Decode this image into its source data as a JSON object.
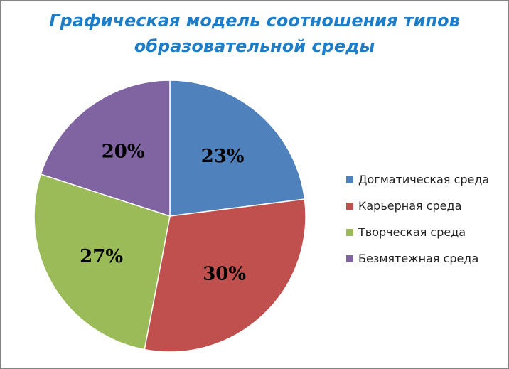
{
  "chart_data": {
    "type": "pie",
    "title_lines": [
      "Графическая модель соотношения типов",
      "образовательной среды"
    ],
    "categories": [
      "Догматическая среда",
      "Карьерная среда",
      "Творческая среда",
      "Безмятежная среда"
    ],
    "values": [
      23,
      30,
      27,
      20
    ],
    "labels": [
      "23%",
      "30%",
      "27%",
      "20%"
    ],
    "colors": [
      "#4f81bd",
      "#c0504d",
      "#9bbb59",
      "#8064a2"
    ],
    "legend_position": "right",
    "start": "12 o'clock",
    "direction": "clockwise"
  }
}
